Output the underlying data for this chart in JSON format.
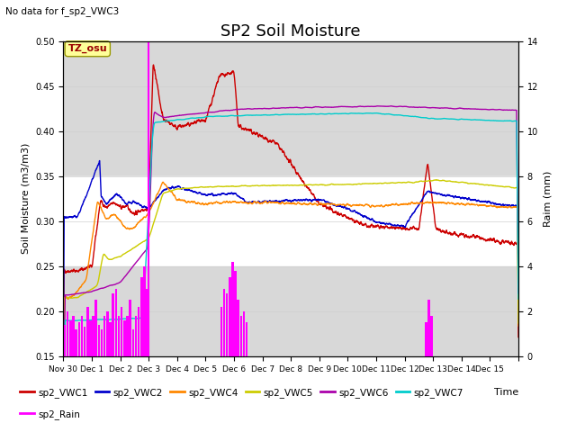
{
  "title": "SP2 Soil Moisture",
  "no_data_text": "No data for f_sp2_VWC3",
  "tz_label": "TZ_osu",
  "xlabel": "Time",
  "ylabel_left": "Soil Moisture (m3/m3)",
  "ylabel_right": "Raim (mm)",
  "ylim_left": [
    0.15,
    0.5
  ],
  "ylim_right": [
    0,
    14
  ],
  "series_colors": {
    "VWC1": "#cc0000",
    "VWC2": "#0000cc",
    "VWC4": "#ff8800",
    "VWC5": "#cccc00",
    "VWC6": "#aa00aa",
    "VWC7": "#00cccc",
    "Rain": "#ff00ff"
  },
  "bg_gray": "#d8d8d8",
  "bg_white": "#f0f0f0",
  "title_fontsize": 13,
  "label_fontsize": 8,
  "tick_fontsize": 7
}
